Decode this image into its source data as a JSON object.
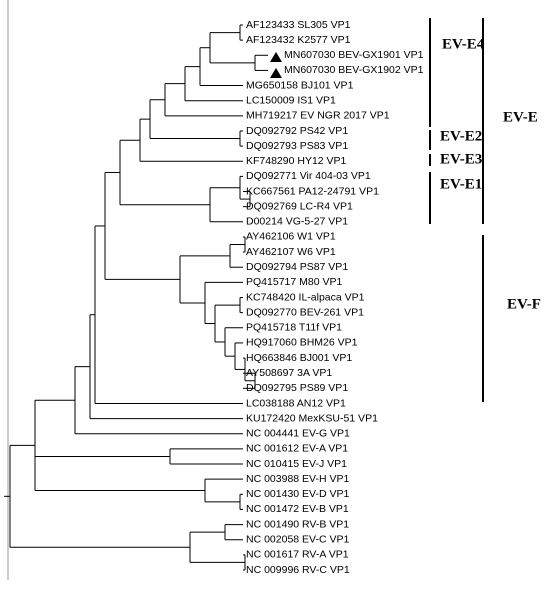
{
  "leaves": [
    "AF123433 SL305 VP1",
    "AF123432 K2577 VP1",
    "MN607030 BEV-GX1901 VP1",
    "MN607030 BEV-GX1902 VP1",
    "MG650158 BJ101 VP1",
    "LC150009 IS1 VP1",
    "MH719217 EV NGR 2017 VP1",
    "DQ092792 PS42 VP1",
    "DQ092793 PS83 VP1",
    "KF748290 HY12 VP1",
    "DQ092771 Vir 404-03 VP1",
    "KC667561 PA12-24791 VP1",
    "DQ092769 LC-R4 VP1",
    "D00214 VG-5-27 VP1",
    "AY462106 W1 VP1",
    "AY462107 W6 VP1",
    "DQ092794 PS87 VP1",
    "PQ415717 M80 VP1",
    "KC748420 IL-alpaca VP1",
    "DQ092770 BEV-261 VP1",
    "PQ415718 T11f VP1",
    "HQ917060 BHM26 VP1",
    "HQ663846 BJ001 VP1",
    "AY508697 3A VP1",
    "DQ092795 PS89 VP1",
    "LC038188 AN12 VP1",
    "KU172420 MexKSU-51 VP1",
    "NC 004441 EV-G VP1",
    "NC 001612 EV-A VP1",
    "NC 010415 EV-J VP1",
    "NC 003988 EV-H VP1",
    "NC 001430 EV-D VP1",
    "NC 001472 EV-B VP1",
    "NC 001490 RV-B VP1",
    "NC 002058 EV-C VP1",
    "NC 001617 RV-A VP1",
    "NC 009996 RV-C VP1"
  ],
  "clades": [
    "EV-E4",
    "EV-E2",
    "EV-E3",
    "EV-E1",
    "EV-E",
    "EV-F"
  ]
}
